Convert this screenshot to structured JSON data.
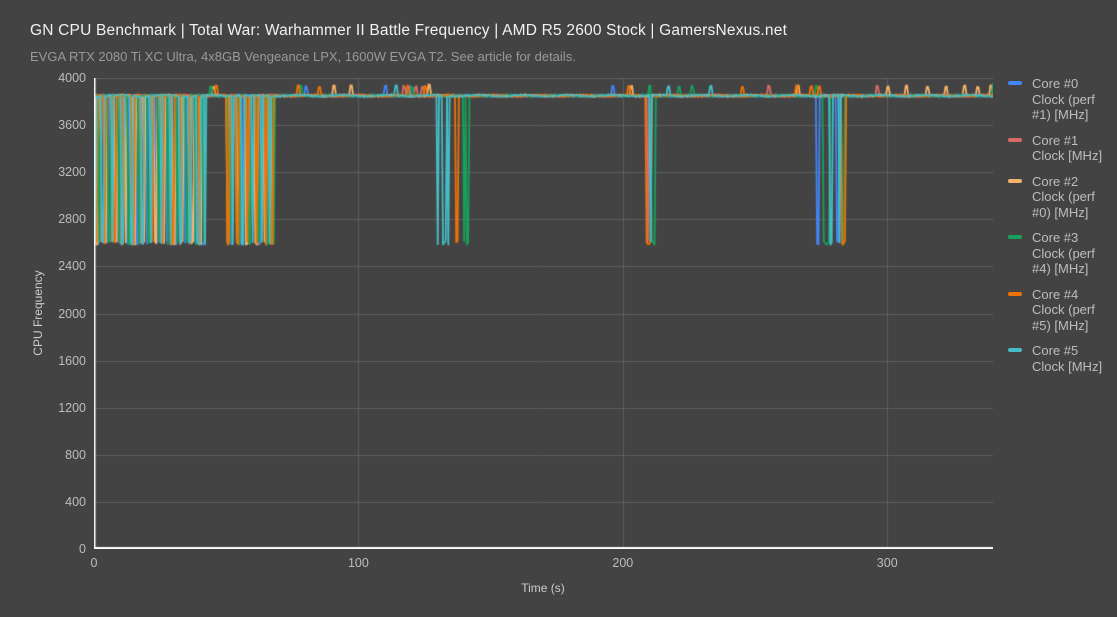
{
  "header": {
    "title": "GN CPU Benchmark | Total War: Warhammer II Battle Frequency | AMD R5 2600 Stock | GamersNexus.net",
    "subtitle": "EVGA RTX 2080 Ti XC Ultra, 4x8GB Vengeance LPX, 1600W EVGA T2. See article for details."
  },
  "chart_data": {
    "type": "line",
    "title": "GN CPU Benchmark | Total War: Warhammer II Battle Frequency | AMD R5 2600 Stock | GamersNexus.net",
    "subtitle": "EVGA RTX 2080 Ti XC Ultra, 4x8GB Vengeance LPX, 1600W EVGA T2. See article for details.",
    "xlabel": "Time (s)",
    "ylabel": "CPU Frequency",
    "xlim": [
      0,
      340
    ],
    "ylim": [
      0,
      4000
    ],
    "x_ticks": [
      0,
      100,
      200,
      300
    ],
    "y_ticks": [
      0,
      400,
      800,
      1200,
      1600,
      2000,
      2400,
      2800,
      3200,
      3600,
      4000
    ],
    "grid": true,
    "legend_position": "right",
    "units": "MHz",
    "baseline_mhz": 3850,
    "dip_mhz": 2600,
    "spike_mhz": 3930,
    "sample_step_s": 0.5,
    "colors": {
      "background": "#434343",
      "grid": "#5e5e5e",
      "axis": "#ffffff",
      "tick_text": "#bdbdbd",
      "title_text": "#f1f1f1",
      "subtitle_text": "#9a9a9a"
    },
    "series": [
      {
        "name": "Core #0 Clock (perf #1) [MHz]",
        "color": "#4285f4",
        "dips": [
          [
            1.2,
            0.6
          ],
          [
            4.8,
            0.5
          ],
          [
            8.6,
            0.8
          ],
          [
            12.4,
            0.5
          ],
          [
            15.8,
            1.0
          ],
          [
            19.6,
            0.5
          ],
          [
            23.4,
            0.7
          ],
          [
            27.2,
            0.5
          ],
          [
            30.6,
            0.9
          ],
          [
            34.2,
            0.5
          ],
          [
            37.6,
            0.6
          ],
          [
            40.4,
            1.2
          ],
          [
            51.6,
            0.6
          ],
          [
            55.2,
            0.8
          ],
          [
            58.8,
            0.5
          ],
          [
            62.4,
            1.0
          ],
          [
            65.8,
            0.5
          ],
          [
            273.5,
            0.8
          ],
          [
            280.8,
            0.8
          ]
        ],
        "spikes": [
          [
            80,
            0.7
          ],
          [
            110,
            0.7
          ],
          [
            119,
            0.6
          ],
          [
            196,
            0.6
          ]
        ]
      },
      {
        "name": "Core #1 Clock [MHz]",
        "color": "#d96a6a",
        "dips": [
          [
            2.4,
            0.5
          ],
          [
            6.2,
            0.7
          ],
          [
            10.0,
            0.5
          ],
          [
            13.8,
            0.8
          ],
          [
            17.4,
            0.5
          ],
          [
            21.2,
            0.6
          ],
          [
            25.0,
            0.5
          ],
          [
            28.6,
            0.8
          ],
          [
            32.2,
            0.5
          ],
          [
            35.8,
            0.7
          ],
          [
            39.2,
            0.5
          ],
          [
            50.8,
            0.5
          ],
          [
            54.4,
            0.6
          ],
          [
            58.0,
            0.5
          ],
          [
            61.6,
            0.7
          ],
          [
            65.0,
            0.5
          ],
          [
            209.3,
            0.5
          ]
        ],
        "spikes": [
          [
            117,
            0.6
          ],
          [
            121.5,
            0.6
          ],
          [
            124,
            0.6
          ],
          [
            255,
            0.6
          ],
          [
            296,
            0.6
          ]
        ]
      },
      {
        "name": "Core #2 Clock (perf #0) [MHz]",
        "color": "#f6b26b",
        "dips": [
          [
            0.8,
            0.7
          ],
          [
            4.2,
            0.5
          ],
          [
            7.8,
            1.0
          ],
          [
            11.6,
            0.5
          ],
          [
            15.0,
            0.6
          ],
          [
            18.8,
            0.5
          ],
          [
            22.6,
            0.9
          ],
          [
            26.4,
            0.5
          ],
          [
            29.8,
            0.7
          ],
          [
            33.4,
            0.5
          ],
          [
            36.8,
            1.1
          ],
          [
            40.0,
            0.5
          ],
          [
            50.2,
            0.6
          ],
          [
            53.8,
            0.5
          ],
          [
            57.2,
            2.2
          ],
          [
            61.0,
            0.5
          ],
          [
            64.4,
            0.8
          ],
          [
            67.2,
            0.5
          ]
        ],
        "spikes": [
          [
            45,
            0.7
          ],
          [
            90.5,
            0.6
          ],
          [
            97,
            0.6
          ],
          [
            126.5,
            0.8,
            3950
          ],
          [
            203,
            0.6
          ],
          [
            266,
            0.8
          ],
          [
            300,
            0.6
          ],
          [
            307,
            0.6
          ],
          [
            315,
            0.6
          ],
          [
            322,
            0.6
          ],
          [
            329,
            0.6
          ],
          [
            334,
            0.6
          ],
          [
            339,
            0.6
          ]
        ]
      },
      {
        "name": "Core #3 Clock (perf #4) [MHz]",
        "color": "#18a05c",
        "dips": [
          [
            1.8,
            0.5
          ],
          [
            5.4,
            0.9
          ],
          [
            9.2,
            0.5
          ],
          [
            13.0,
            0.6
          ],
          [
            16.6,
            0.5
          ],
          [
            20.4,
            1.0
          ],
          [
            24.2,
            0.5
          ],
          [
            27.8,
            0.6
          ],
          [
            31.4,
            0.5
          ],
          [
            34.8,
            0.8
          ],
          [
            38.4,
            0.5
          ],
          [
            41.2,
            0.6
          ],
          [
            51.0,
            0.8
          ],
          [
            54.8,
            0.5
          ],
          [
            58.4,
            0.6
          ],
          [
            62.0,
            0.5
          ],
          [
            65.4,
            1.0
          ],
          [
            67.6,
            0.5
          ],
          [
            139.6,
            0.7
          ],
          [
            141.0,
            0.8
          ],
          [
            210.8,
            1.2
          ],
          [
            275.8,
            1.2
          ],
          [
            277.4,
            0.6
          ],
          [
            282.9,
            0.8
          ]
        ],
        "spikes": [
          [
            44,
            0.7
          ],
          [
            78,
            0.6
          ],
          [
            120,
            0.6
          ],
          [
            209.8,
            0.8
          ],
          [
            221,
            0.6
          ],
          [
            226,
            0.6
          ],
          [
            273,
            0.6
          ],
          [
            339.8,
            1.0,
            3965
          ]
        ]
      },
      {
        "name": "Core #4 Clock (perf #5) [MHz]",
        "color": "#ee7207",
        "dips": [
          [
            0.5,
            0.6
          ],
          [
            3.6,
            0.5
          ],
          [
            7.2,
            0.8
          ],
          [
            10.8,
            0.5
          ],
          [
            14.4,
            0.7
          ],
          [
            18.0,
            0.5
          ],
          [
            21.8,
            0.6
          ],
          [
            25.6,
            0.5
          ],
          [
            29.2,
            1.0
          ],
          [
            32.8,
            0.5
          ],
          [
            36.2,
            0.6
          ],
          [
            39.6,
            0.8
          ],
          [
            50.5,
            0.5
          ],
          [
            54.0,
            0.7
          ],
          [
            57.6,
            0.5
          ],
          [
            61.2,
            0.6
          ],
          [
            64.8,
            0.5
          ],
          [
            67.0,
            0.9
          ],
          [
            137.0,
            0.9
          ],
          [
            209.0,
            1.5
          ],
          [
            283.0,
            1.0
          ]
        ],
        "spikes": [
          [
            46,
            0.7
          ],
          [
            77,
            0.6
          ],
          [
            85,
            0.6
          ],
          [
            118.5,
            0.6
          ],
          [
            125,
            0.6
          ],
          [
            202,
            0.7
          ],
          [
            245,
            0.6
          ],
          [
            265.5,
            0.8
          ],
          [
            271,
            0.6
          ],
          [
            274,
            0.6
          ]
        ]
      },
      {
        "name": "Core #5 Clock [MHz]",
        "color": "#45bdc6",
        "dips": [
          [
            0.2,
            0.5
          ],
          [
            3.0,
            0.8
          ],
          [
            6.8,
            0.5
          ],
          [
            10.4,
            0.6
          ],
          [
            14.0,
            0.5
          ],
          [
            17.8,
            0.9
          ],
          [
            21.4,
            0.5
          ],
          [
            25.2,
            0.6
          ],
          [
            28.9,
            0.5
          ],
          [
            32.5,
            0.7
          ],
          [
            36.0,
            0.5
          ],
          [
            39.0,
            1.3
          ],
          [
            41.6,
            0.5
          ],
          [
            52.2,
            0.5
          ],
          [
            56.0,
            0.9
          ],
          [
            59.6,
            0.5
          ],
          [
            63.2,
            0.6
          ],
          [
            66.4,
            0.5
          ],
          [
            129.8,
            0.6
          ],
          [
            131.8,
            1.2
          ],
          [
            133.6,
            0.8
          ],
          [
            210.2,
            0.5
          ],
          [
            278.3,
            1.0
          ],
          [
            281.6,
            0.6
          ]
        ],
        "spikes": [
          [
            114,
            0.6
          ],
          [
            217,
            0.6
          ],
          [
            233,
            0.6
          ]
        ]
      }
    ]
  }
}
